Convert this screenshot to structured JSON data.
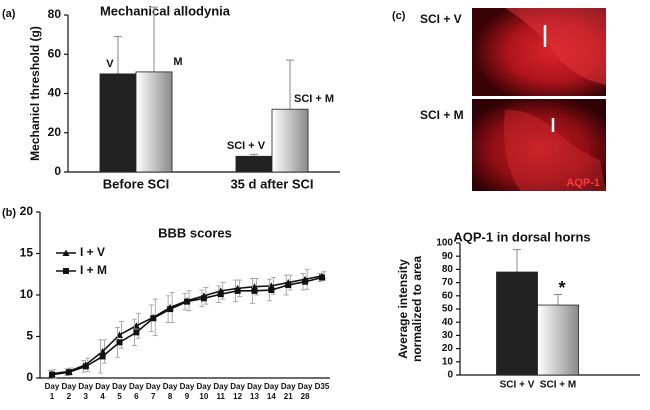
{
  "figure": {
    "panel_a": "(a)",
    "panel_b": "(b)",
    "panel_c": "(c)",
    "image": {
      "labels": [
        "SCI + V",
        "SCI + M"
      ],
      "stain": "AQP-1"
    }
  },
  "chart_data": [
    {
      "type": "bar",
      "title": "Mechanical allodynia",
      "ylabel": "Mechanicl threshold (g)",
      "categories": [
        "Before SCI",
        "35 d after SCI"
      ],
      "series": [
        {
          "name": "V",
          "color": "#222222",
          "values": [
            50,
            8
          ],
          "errors": [
            19,
            1
          ],
          "point_labels": [
            "V",
            "SCI + V"
          ]
        },
        {
          "name": "M",
          "color": "#8a8a8a",
          "gradient": true,
          "values": [
            51,
            32
          ],
          "errors": [
            33,
            25
          ],
          "point_labels": [
            "M",
            "SCI + M"
          ]
        }
      ],
      "ylim": [
        0,
        80
      ],
      "yticks": [
        0,
        20,
        40,
        60,
        80
      ],
      "grid": false
    },
    {
      "type": "line",
      "title": "BBB scores",
      "categories": [
        "Day 1",
        "Day 2",
        "Day 3",
        "Day 4",
        "Day 5",
        "Day 6",
        "Day 7",
        "Day 8",
        "Day 9",
        "Day 10",
        "Day 11",
        "Day 12",
        "Day 13",
        "Day 14",
        "Day 21",
        "Day 28",
        "D35"
      ],
      "series": [
        {
          "name": "I + V",
          "color": "#111111",
          "marker": "triangle",
          "values": [
            0.5,
            0.8,
            1.6,
            3.2,
            5.2,
            6.3,
            7.3,
            8.5,
            9.3,
            9.9,
            10.5,
            10.8,
            11.0,
            11.1,
            11.5,
            11.9,
            12.3
          ],
          "errors": [
            0.5,
            0.4,
            0.8,
            1.4,
            1.6,
            1.5,
            2.2,
            1.8,
            1.2,
            1.0,
            1.0,
            1.0,
            1.0,
            1.0,
            0.9,
            1.2,
            0.5
          ]
        },
        {
          "name": "I + M",
          "color": "#111111",
          "marker": "square",
          "values": [
            0.4,
            0.7,
            1.4,
            2.6,
            4.3,
            5.5,
            7.2,
            8.3,
            9.2,
            9.6,
            10.1,
            10.5,
            10.5,
            10.6,
            11.2,
            11.6,
            12.1
          ],
          "errors": [
            0.5,
            0.4,
            0.7,
            2.0,
            1.8,
            1.6,
            1.6,
            1.6,
            1.0,
            1.0,
            1.0,
            1.3,
            1.5,
            1.3,
            1.2,
            1.0,
            0.5
          ]
        }
      ],
      "ylim": [
        0,
        20
      ],
      "yticks": [
        0,
        5,
        10,
        15,
        20
      ],
      "grid": false
    },
    {
      "type": "bar",
      "title": "AQP-1 in dorsal horns",
      "ylabel": [
        "Average intensity",
        "normalized to area"
      ],
      "categories": [
        "SCI + V",
        "SCI + M"
      ],
      "series": [
        {
          "colors": [
            "#222222",
            "#8a8a8a"
          ],
          "gradient": [
            false,
            true
          ],
          "values": [
            78,
            53
          ],
          "errors": [
            17,
            8
          ],
          "markers": [
            null,
            "*"
          ]
        }
      ],
      "ylim": [
        0,
        100
      ],
      "yticks": [
        0,
        10,
        20,
        30,
        40,
        50,
        60,
        70,
        80,
        90,
        100
      ],
      "grid": false
    }
  ]
}
